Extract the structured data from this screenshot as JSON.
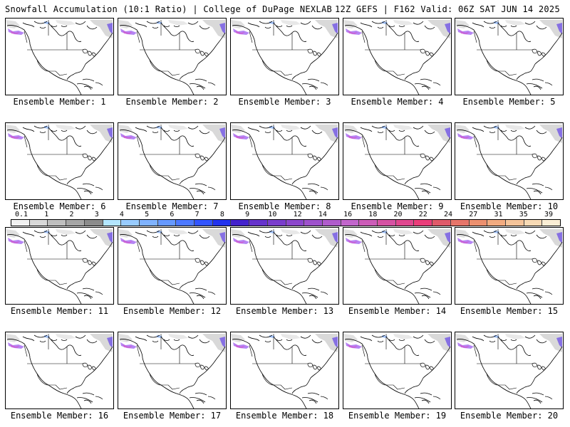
{
  "header": {
    "left": "Snowfall Accumulation (10:1 Ratio) | College of DuPage NEXLAB",
    "right": "12Z GEFS | F162 Valid: 06Z SAT JUN 14 2025"
  },
  "panel_label_prefix": "Ensemble Member: ",
  "members": [
    {
      "label": "Ensemble Member: 1"
    },
    {
      "label": "Ensemble Member: 2"
    },
    {
      "label": "Ensemble Member: 3"
    },
    {
      "label": "Ensemble Member: 4"
    },
    {
      "label": "Ensemble Member: 5"
    },
    {
      "label": "Ensemble Member: 6"
    },
    {
      "label": "Ensemble Member: 7"
    },
    {
      "label": "Ensemble Member: 8"
    },
    {
      "label": "Ensemble Member: 9"
    },
    {
      "label": "Ensemble Member: 10"
    },
    {
      "label": "Ensemble Member: 11"
    },
    {
      "label": "Ensemble Member: 12"
    },
    {
      "label": "Ensemble Member: 13"
    },
    {
      "label": "Ensemble Member: 14"
    },
    {
      "label": "Ensemble Member: 15"
    },
    {
      "label": "Ensemble Member: 16"
    },
    {
      "label": "Ensemble Member: 17"
    },
    {
      "label": "Ensemble Member: 18"
    },
    {
      "label": "Ensemble Member: 19"
    },
    {
      "label": "Ensemble Member: 20"
    }
  ],
  "colorbar": {
    "labels": [
      "0.1",
      "1",
      "2",
      "3",
      "4",
      "5",
      "6",
      "7",
      "8",
      "9",
      "10",
      "12",
      "14",
      "16",
      "18",
      "20",
      "22",
      "24",
      "27",
      "31",
      "35",
      "39"
    ],
    "colors": [
      "#f2f2f2",
      "#d9d9d9",
      "#bfbfbf",
      "#a6a6a6",
      "#8c8c8c",
      "#b3e6ff",
      "#99ccff",
      "#80b3ff",
      "#6699ff",
      "#4d79ff",
      "#3355ff",
      "#2233ee",
      "#4422cc",
      "#6633cc",
      "#7a3dcc",
      "#8c47cc",
      "#9e52cc",
      "#b05ccc",
      "#c266cc",
      "#cc5cb8",
      "#d652a3",
      "#e0478f",
      "#ea3d7a",
      "#e05a6a",
      "#e6756a",
      "#ec906f",
      "#f2ab80",
      "#f5c49a",
      "#f8dab5",
      "#fbeed5"
    ]
  }
}
